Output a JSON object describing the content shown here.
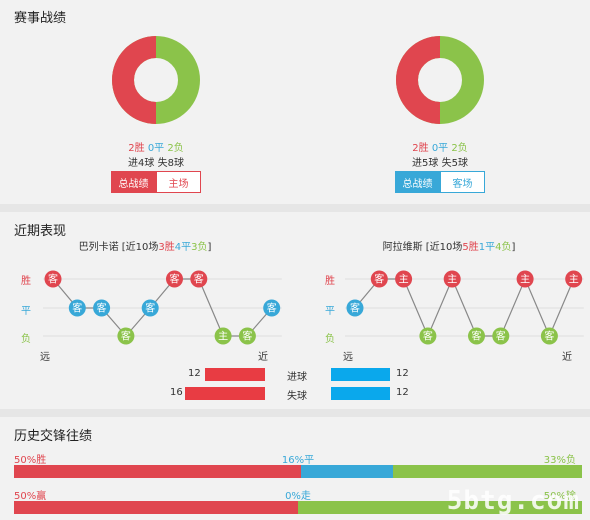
{
  "section1": {
    "title": "赛事战绩",
    "left": {
      "win_text": "2胜",
      "draw_text": "0平",
      "loss_text": "2负",
      "goals_line": "进4球  失8球",
      "win": 2,
      "draw": 0,
      "loss": 2,
      "tab_active": "总战绩",
      "tab_other": "主场"
    },
    "right": {
      "win_text": "2胜",
      "draw_text": "0平",
      "loss_text": "2负",
      "goals_line": "进5球  失5球",
      "win": 2,
      "draw": 0,
      "loss": 2,
      "tab_active": "总战绩",
      "tab_other": "客场"
    }
  },
  "section2": {
    "title": "近期表现",
    "left": {
      "team": "巴列卡诺",
      "summary_pre": " [近10场",
      "wins": "3胜",
      "draws": "4平",
      "losses": "3负",
      "summary_post": "]",
      "results": [
        {
          "r": "W",
          "venue": "客"
        },
        {
          "r": "D",
          "venue": "客"
        },
        {
          "r": "D",
          "venue": "客"
        },
        {
          "r": "L",
          "venue": "客"
        },
        {
          "r": "D",
          "venue": "客"
        },
        {
          "r": "W",
          "venue": "客"
        },
        {
          "r": "W",
          "venue": "客"
        },
        {
          "r": "L",
          "venue": "主"
        },
        {
          "r": "L",
          "venue": "客"
        },
        {
          "r": "D",
          "venue": "客"
        }
      ]
    },
    "right": {
      "team": "阿拉维斯",
      "summary_pre": " [近10场",
      "wins": "5胜",
      "draws": "1平",
      "losses": "4负",
      "summary_post": "]",
      "results": [
        {
          "r": "D",
          "venue": "客"
        },
        {
          "r": "W",
          "venue": "客"
        },
        {
          "r": "W",
          "venue": "主"
        },
        {
          "r": "L",
          "venue": "客"
        },
        {
          "r": "W",
          "venue": "主"
        },
        {
          "r": "L",
          "venue": "客"
        },
        {
          "r": "L",
          "venue": "客"
        },
        {
          "r": "W",
          "venue": "主"
        },
        {
          "r": "L",
          "venue": "客"
        },
        {
          "r": "W",
          "venue": "主"
        }
      ]
    },
    "axis_labels": {
      "win": "胜",
      "draw": "平",
      "loss": "负",
      "far": "远",
      "near": "近"
    },
    "goals": {
      "scored_label": "进球",
      "conceded_label": "失球",
      "left_scored": 12,
      "left_conceded": 16,
      "right_scored": 12,
      "right_conceded": 12
    }
  },
  "section3": {
    "title": "历史交锋往绩",
    "row1": {
      "left_label": "50%胜",
      "mid_label": "16%平",
      "right_label": "33%负",
      "a": 50,
      "b": 16,
      "c": 33
    },
    "row2": {
      "left_label": "50%赢",
      "mid_label": "0%走",
      "right_label": "50%输",
      "a": 50,
      "b": 0,
      "c": 50
    }
  },
  "colors": {
    "red": "#e0464f",
    "blue": "#38a8d8",
    "green": "#8bc34a",
    "gray": "#cccccc"
  },
  "watermark": "5btg.com"
}
